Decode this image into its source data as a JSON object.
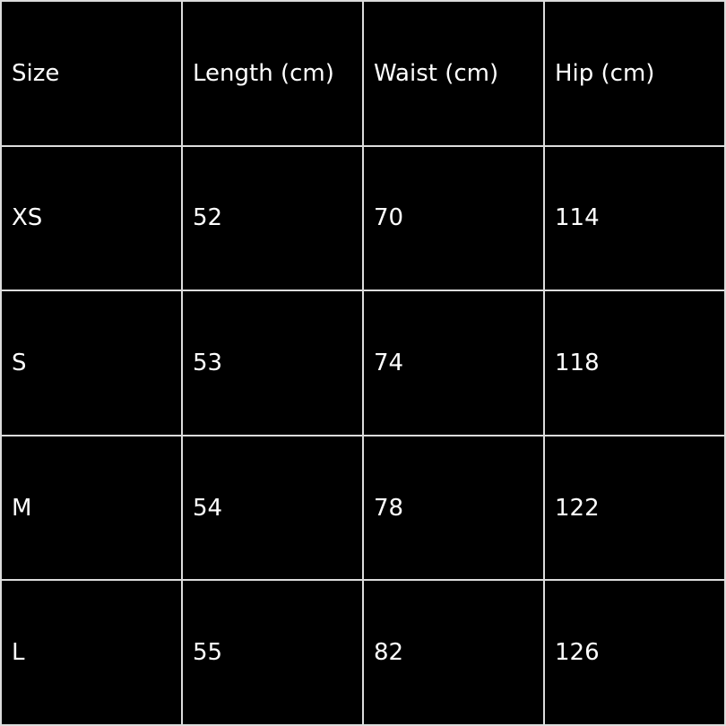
{
  "table": {
    "headers": [
      "Size",
      "Length (cm)",
      "Waist (cm)",
      "Hip (cm)"
    ],
    "rows": [
      [
        "XS",
        "52",
        "70",
        "114"
      ],
      [
        "S",
        "53",
        "74",
        "118"
      ],
      [
        "M",
        "54",
        "78",
        "122"
      ],
      [
        "L",
        "55",
        "82",
        "126"
      ]
    ]
  }
}
